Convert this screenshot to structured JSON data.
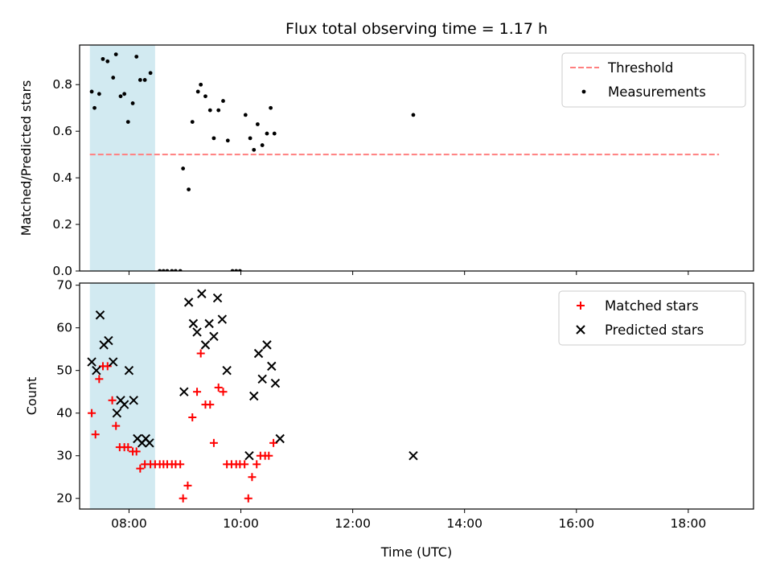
{
  "title": "Flux total observing time = 1.17 h",
  "colors": {
    "threshold": "#ff7f7f",
    "measurement": "#000000",
    "matched": "#ff0000",
    "predicted": "#000000",
    "shade": "#add8e6"
  },
  "chart_data": [
    {
      "type": "scatter",
      "ylabel": "Matched/Predicted stars",
      "xlim": [
        "07:07",
        "19:10"
      ],
      "ylim": [
        0,
        0.97
      ],
      "ytick_labels": [
        "0.0",
        "0.2",
        "0.4",
        "0.6",
        "0.8"
      ],
      "yticks": [
        0,
        0.2,
        0.4,
        0.6,
        0.8
      ],
      "legend_position": "top-right",
      "shaded_span": [
        "07:18",
        "08:28"
      ],
      "threshold_line": {
        "name": "Threshold",
        "y": 0.5,
        "x": [
          "07:18",
          "18:33"
        ]
      },
      "series": [
        {
          "name": "Measurements",
          "points": [
            [
              "07:20",
              0.77
            ],
            [
              "07:23",
              0.7
            ],
            [
              "07:28",
              0.76
            ],
            [
              "07:32",
              0.91
            ],
            [
              "07:37",
              0.9
            ],
            [
              "07:43",
              0.83
            ],
            [
              "07:46",
              0.93
            ],
            [
              "07:51",
              0.75
            ],
            [
              "07:55",
              0.76
            ],
            [
              "07:59",
              0.64
            ],
            [
              "08:04",
              0.72
            ],
            [
              "08:08",
              0.92
            ],
            [
              "08:12",
              0.82
            ],
            [
              "08:17",
              0.82
            ],
            [
              "08:23",
              0.85
            ],
            [
              "08:33",
              0
            ],
            [
              "08:37",
              0
            ],
            [
              "08:41",
              0
            ],
            [
              "08:46",
              0
            ],
            [
              "08:50",
              0
            ],
            [
              "08:55",
              0
            ],
            [
              "08:58",
              0.44
            ],
            [
              "09:04",
              0.35
            ],
            [
              "09:08",
              0.64
            ],
            [
              "09:14",
              0.77
            ],
            [
              "09:17",
              0.8
            ],
            [
              "09:22",
              0.75
            ],
            [
              "09:27",
              0.69
            ],
            [
              "09:31",
              0.57
            ],
            [
              "09:36",
              0.69
            ],
            [
              "09:41",
              0.73
            ],
            [
              "09:46",
              0.56
            ],
            [
              "09:51",
              0
            ],
            [
              "09:55",
              0
            ],
            [
              "09:59",
              0
            ],
            [
              "10:05",
              0.67
            ],
            [
              "10:10",
              0.57
            ],
            [
              "10:14",
              0.52
            ],
            [
              "10:18",
              0.63
            ],
            [
              "10:23",
              0.54
            ],
            [
              "10:28",
              0.59
            ],
            [
              "10:32",
              0.7
            ],
            [
              "10:36",
              0.59
            ],
            [
              "13:05",
              0.67
            ]
          ]
        }
      ]
    },
    {
      "type": "scatter",
      "xlabel": "Time (UTC)",
      "ylabel": "Count",
      "xlim": [
        "07:07",
        "19:10"
      ],
      "ylim": [
        17.5,
        70.5
      ],
      "xtick_labels": [
        "08:00",
        "10:00",
        "12:00",
        "14:00",
        "16:00",
        "18:00"
      ],
      "ytick_labels": [
        "20",
        "30",
        "40",
        "50",
        "60",
        "70"
      ],
      "yticks": [
        20,
        30,
        40,
        50,
        60,
        70
      ],
      "legend_position": "top-right",
      "shaded_span": [
        "07:18",
        "08:28"
      ],
      "series": [
        {
          "name": "Matched stars",
          "marker": "+",
          "points": [
            [
              "07:20",
              40
            ],
            [
              "07:24",
              35
            ],
            [
              "07:28",
              48
            ],
            [
              "07:32",
              51
            ],
            [
              "07:37",
              51
            ],
            [
              "07:42",
              43
            ],
            [
              "07:46",
              37
            ],
            [
              "07:50",
              32
            ],
            [
              "07:55",
              32
            ],
            [
              "07:59",
              32
            ],
            [
              "08:04",
              31
            ],
            [
              "08:08",
              31
            ],
            [
              "08:12",
              27
            ],
            [
              "08:17",
              28
            ],
            [
              "08:23",
              28
            ],
            [
              "08:28",
              28
            ],
            [
              "08:33",
              28
            ],
            [
              "08:37",
              28
            ],
            [
              "08:41",
              28
            ],
            [
              "08:46",
              28
            ],
            [
              "08:50",
              28
            ],
            [
              "08:55",
              28
            ],
            [
              "08:58",
              20
            ],
            [
              "09:03",
              23
            ],
            [
              "09:08",
              39
            ],
            [
              "09:13",
              45
            ],
            [
              "09:17",
              54
            ],
            [
              "09:22",
              42
            ],
            [
              "09:27",
              42
            ],
            [
              "09:31",
              33
            ],
            [
              "09:36",
              46
            ],
            [
              "09:41",
              45
            ],
            [
              "09:45",
              28
            ],
            [
              "09:50",
              28
            ],
            [
              "09:55",
              28
            ],
            [
              "09:59",
              28
            ],
            [
              "10:04",
              28
            ],
            [
              "10:08",
              20
            ],
            [
              "10:12",
              25
            ],
            [
              "10:17",
              28
            ],
            [
              "10:21",
              30
            ],
            [
              "10:26",
              30
            ],
            [
              "10:30",
              30
            ],
            [
              "10:35",
              33
            ]
          ]
        },
        {
          "name": "Predicted stars",
          "marker": "x",
          "points": [
            [
              "07:20",
              52
            ],
            [
              "07:25",
              50
            ],
            [
              "07:29",
              63
            ],
            [
              "07:33",
              56
            ],
            [
              "07:38",
              57
            ],
            [
              "07:43",
              52
            ],
            [
              "07:47",
              40
            ],
            [
              "07:51",
              43
            ],
            [
              "07:55",
              42
            ],
            [
              "08:00",
              50
            ],
            [
              "08:05",
              43
            ],
            [
              "08:09",
              34
            ],
            [
              "08:14",
              33
            ],
            [
              "08:18",
              34
            ],
            [
              "08:22",
              33
            ],
            [
              "08:59",
              45
            ],
            [
              "09:04",
              66
            ],
            [
              "09:09",
              61
            ],
            [
              "09:13",
              59
            ],
            [
              "09:18",
              68
            ],
            [
              "09:22",
              56
            ],
            [
              "09:26",
              61
            ],
            [
              "09:31",
              58
            ],
            [
              "09:35",
              67
            ],
            [
              "09:40",
              62
            ],
            [
              "09:45",
              50
            ],
            [
              "10:09",
              30
            ],
            [
              "10:14",
              44
            ],
            [
              "10:19",
              54
            ],
            [
              "10:23",
              48
            ],
            [
              "10:28",
              56
            ],
            [
              "10:33",
              51
            ],
            [
              "10:37",
              47
            ],
            [
              "10:42",
              34
            ],
            [
              "13:05",
              30
            ]
          ]
        }
      ]
    }
  ]
}
